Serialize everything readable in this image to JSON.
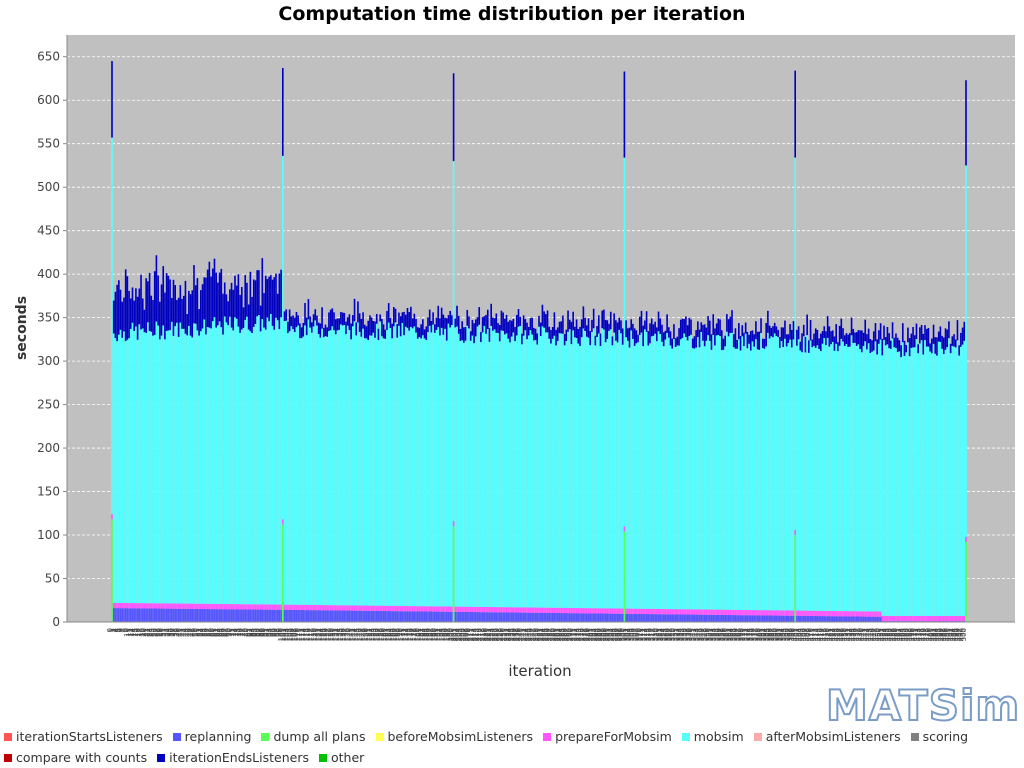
{
  "logo": "MATSim",
  "chart_data": {
    "type": "bar",
    "stacked": true,
    "title": "Computation time distribution per iteration",
    "xlabel": "iteration",
    "ylabel": "seconds",
    "ylim": [
      0,
      675
    ],
    "yticks": [
      0,
      50,
      100,
      150,
      200,
      250,
      300,
      350,
      400,
      450,
      500,
      550,
      600,
      650
    ],
    "x_range": [
      0,
      500
    ],
    "grid": true,
    "legend_position": "bottom",
    "colors": {
      "plot_background": "#c0c0c0",
      "iterationStartsListeners": "#ff5555",
      "replanning": "#5555ff",
      "dump all plans": "#55ff55",
      "beforeMobsimListeners": "#ffff55",
      "prepareForMobsim": "#ff55ff",
      "mobsim": "#55ffff",
      "afterMobsimListeners": "#ffaaaa",
      "scoring": "#808080",
      "compare with counts": "#c00000",
      "iterationEndsListeners": "#0000c0",
      "other": "#00c000"
    },
    "legend": [
      [
        "iterationStartsListeners",
        "replanning",
        "dump all plans",
        "beforeMobsimListeners",
        "prepareForMobsim",
        "mobsim",
        "afterMobsimListeners",
        "scoring"
      ],
      [
        "compare with counts",
        "iterationEndsListeners",
        "other"
      ]
    ],
    "series_summary": [
      {
        "name": "replanning",
        "segments": [
          {
            "from": 1,
            "to": 100,
            "start": 16,
            "end": 14
          },
          {
            "from": 100,
            "to": 450,
            "start": 14,
            "end": 6
          },
          {
            "from": 451,
            "to": 500,
            "start": 1,
            "end": 1
          }
        ]
      },
      {
        "name": "prepareForMobsim",
        "segments": [
          {
            "from": 1,
            "to": 100,
            "start": 6,
            "end": 6
          },
          {
            "from": 100,
            "to": 500,
            "start": 6,
            "end": 6
          }
        ]
      },
      {
        "name": "mobsim",
        "segments": [
          {
            "from": 1,
            "to": 100,
            "start": 310,
            "end": 325
          },
          {
            "from": 100,
            "to": 450,
            "start": 318,
            "end": 306
          },
          {
            "from": 451,
            "to": 500,
            "start": 308,
            "end": 310
          }
        ]
      },
      {
        "name": "iterationEndsListeners",
        "segments": [
          {
            "from": 1,
            "to": 100,
            "start": 45,
            "end": 40
          },
          {
            "from": 100,
            "to": 450,
            "start": 15,
            "end": 15
          },
          {
            "from": 451,
            "to": 500,
            "start": 14,
            "end": 14
          }
        ]
      }
    ],
    "peak_iterations": [
      {
        "iteration": 0,
        "dump_all_plans": 118,
        "prepareForMobsim": 6,
        "mobsim": 433,
        "iterationEndsListeners": 88,
        "total": 645
      },
      {
        "iteration": 100,
        "dump_all_plans": 112,
        "prepareForMobsim": 6,
        "mobsim": 418,
        "iterationEndsListeners": 101,
        "total": 637
      },
      {
        "iteration": 200,
        "dump_all_plans": 110,
        "prepareForMobsim": 6,
        "mobsim": 414,
        "iterationEndsListeners": 101,
        "total": 631
      },
      {
        "iteration": 300,
        "dump_all_plans": 104,
        "prepareForMobsim": 6,
        "mobsim": 424,
        "iterationEndsListeners": 99,
        "total": 633
      },
      {
        "iteration": 400,
        "dump_all_plans": 100,
        "prepareForMobsim": 6,
        "mobsim": 428,
        "iterationEndsListeners": 100,
        "total": 634
      },
      {
        "iteration": 500,
        "dump_all_plans": 92,
        "prepareForMobsim": 6,
        "mobsim": 427,
        "iterationEndsListeners": 98,
        "total": 623
      }
    ]
  }
}
